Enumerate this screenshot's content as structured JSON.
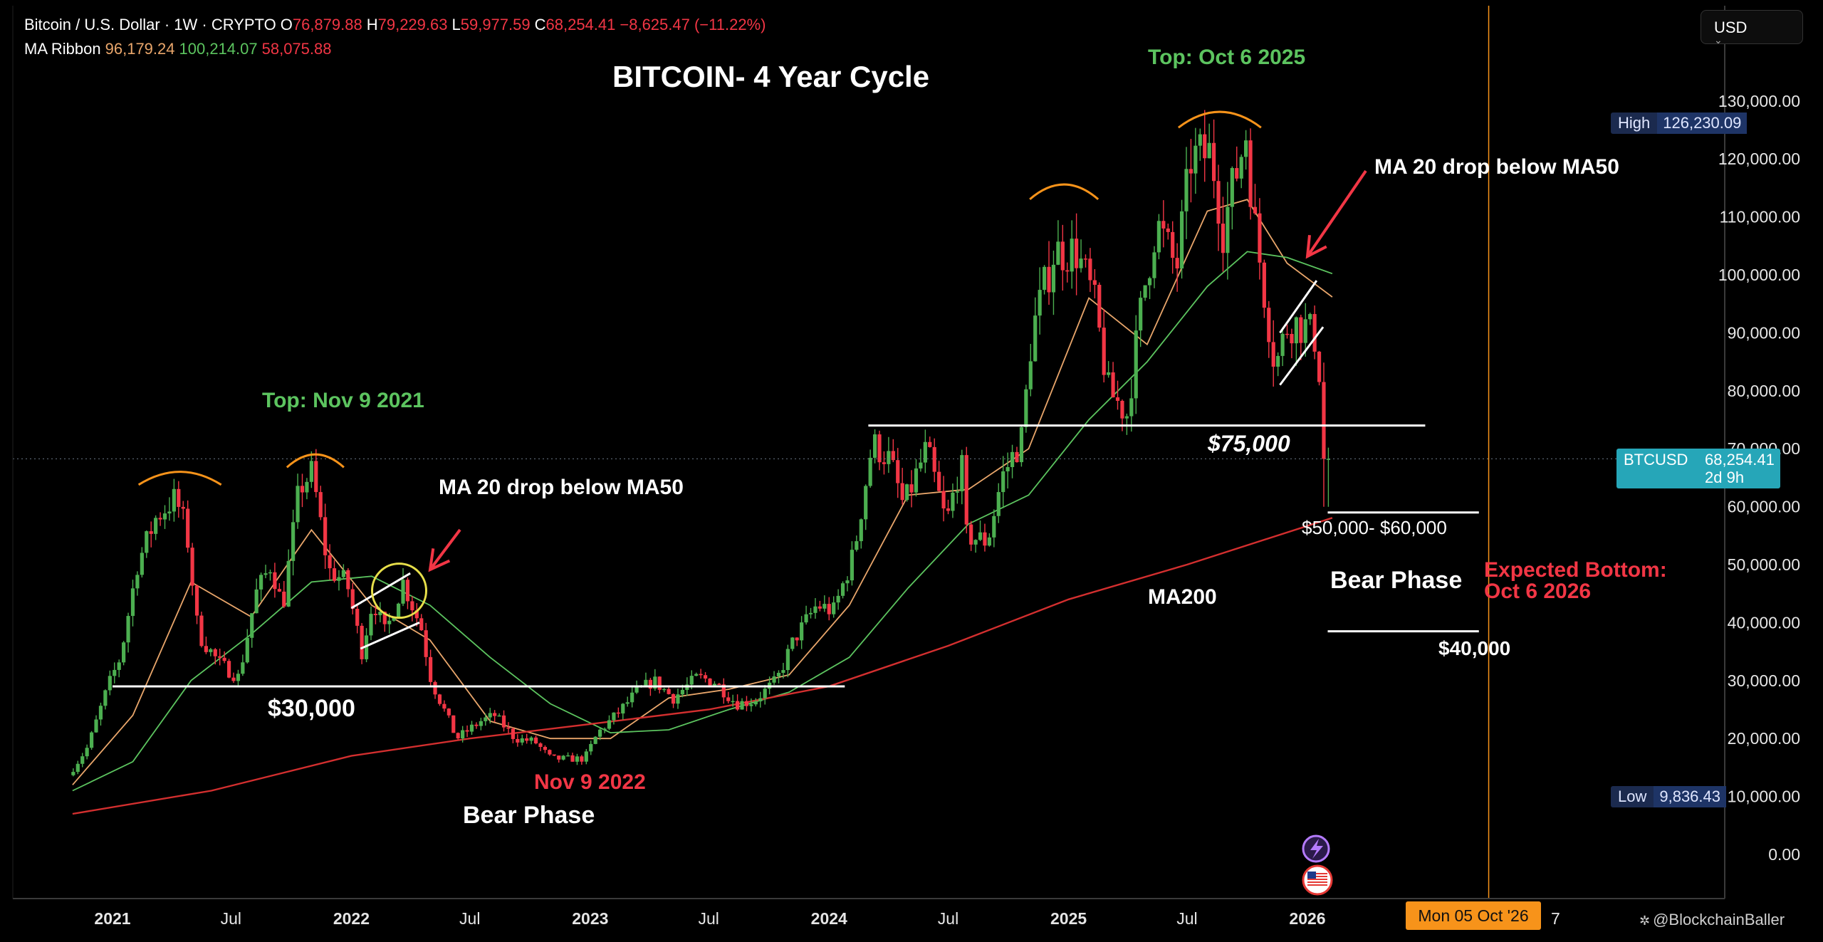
{
  "legend": {
    "title": "Bitcoin / U.S. Dollar · 1W · CRYPTO",
    "open_key": "O",
    "open": "76,879.88",
    "high_key": "H",
    "high": "79,229.63",
    "low_key": "L",
    "low": "59,977.59",
    "close_key": "C",
    "close": "68,254.41",
    "change": "−8,625.47 (−11.22%)",
    "ma_label": "MA Ribbon",
    "ma1": "96,179.24",
    "ma2": "100,214.07",
    "ma3": "58,075.88"
  },
  "currency": "USD",
  "tags": {
    "high_label": "High",
    "high_value": "126,230.09",
    "low_label": "Low",
    "low_value": "9,836.43",
    "symbol": "BTCUSD",
    "last_price": "68,254.41",
    "countdown": "2d 9h",
    "cursor_date": "Mon 05 Oct '26",
    "cursor_hidden_tail": "7"
  },
  "watermark": "@BlockchainBaller",
  "colors": {
    "up": "#4caf50",
    "down": "#f23645",
    "ma20": "#e9a66b",
    "ma50": "#5cc45f",
    "ma200": "#d32f2f",
    "green_text": "#5cc45f",
    "red_text": "#f23645",
    "arc": "#f7931a",
    "cursor": "#f7931a",
    "highlight_circle": "#e7df4a"
  },
  "chart_data": {
    "type": "candlestick",
    "title": "BITCOIN- 4 Year Cycle",
    "timeframe": "1W",
    "ylim": [
      0,
      140000
    ],
    "y_ticks": [
      "0.00",
      "10,000.00",
      "20,000.00",
      "30,000.00",
      "40,000.00",
      "50,000.00",
      "60,000.00",
      "70,000.00",
      "80,000.00",
      "90,000.00",
      "100,000.00",
      "110,000.00",
      "120,000.00",
      "130,000.00"
    ],
    "x_ticks": [
      "2021",
      "Jul",
      "2022",
      "Jul",
      "2023",
      "Jul",
      "2024",
      "Jul",
      "2025",
      "Jul",
      "2026"
    ],
    "price_path": [
      [
        "2020-11-01",
        13500
      ],
      [
        "2020-12-01",
        18500
      ],
      [
        "2021-01-01",
        29000
      ],
      [
        "2021-01-20",
        34000
      ],
      [
        "2021-02-15",
        50000
      ],
      [
        "2021-03-15",
        58000
      ],
      [
        "2021-04-14",
        61500
      ],
      [
        "2021-05-01",
        56000
      ],
      [
        "2021-05-19",
        38000
      ],
      [
        "2021-06-20",
        33000
      ],
      [
        "2021-07-20",
        30500
      ],
      [
        "2021-08-15",
        45000
      ],
      [
        "2021-09-07",
        50000
      ],
      [
        "2021-09-25",
        42500
      ],
      [
        "2021-10-20",
        63000
      ],
      [
        "2021-11-09",
        66000
      ],
      [
        "2021-12-04",
        49000
      ],
      [
        "2022-01-01",
        47000
      ],
      [
        "2022-01-24",
        35000
      ],
      [
        "2022-02-10",
        44000
      ],
      [
        "2022-03-01",
        38000
      ],
      [
        "2022-03-28",
        47000
      ],
      [
        "2022-04-25",
        39000
      ],
      [
        "2022-05-10",
        30000
      ],
      [
        "2022-06-18",
        20000
      ],
      [
        "2022-07-25",
        23000
      ],
      [
        "2022-08-15",
        24000
      ],
      [
        "2022-09-15",
        20000
      ],
      [
        "2022-10-15",
        19500
      ],
      [
        "2022-11-09",
        16500
      ],
      [
        "2022-12-30",
        16500
      ],
      [
        "2023-01-20",
        21000
      ],
      [
        "2023-02-20",
        24500
      ],
      [
        "2023-03-20",
        28000
      ],
      [
        "2023-04-15",
        30000
      ],
      [
        "2023-05-15",
        27000
      ],
      [
        "2023-06-20",
        30500
      ],
      [
        "2023-07-15",
        30000
      ],
      [
        "2023-08-20",
        26000
      ],
      [
        "2023-09-15",
        26500
      ],
      [
        "2023-10-20",
        30000
      ],
      [
        "2023-11-15",
        37000
      ],
      [
        "2023-12-20",
        43000
      ],
      [
        "2024-01-15",
        42000
      ],
      [
        "2024-02-15",
        52000
      ],
      [
        "2024-03-14",
        71000
      ],
      [
        "2024-04-10",
        68000
      ],
      [
        "2024-05-01",
        60000
      ],
      [
        "2024-06-05",
        70000
      ],
      [
        "2024-07-05",
        57000
      ],
      [
        "2024-07-28",
        68000
      ],
      [
        "2024-08-05",
        55000
      ],
      [
        "2024-09-06",
        54000
      ],
      [
        "2024-09-28",
        65000
      ],
      [
        "2024-10-29",
        72000
      ],
      [
        "2024-11-13",
        90000
      ],
      [
        "2024-12-17",
        104000
      ],
      [
        "2025-01-20",
        104000
      ],
      [
        "2025-02-15",
        96000
      ],
      [
        "2025-03-10",
        80000
      ],
      [
        "2025-04-07",
        76000
      ],
      [
        "2025-05-01",
        96000
      ],
      [
        "2025-05-22",
        109000
      ],
      [
        "2025-06-22",
        101000
      ],
      [
        "2025-07-14",
        120000
      ],
      [
        "2025-08-14",
        121000
      ],
      [
        "2025-09-01",
        108000
      ],
      [
        "2025-10-06",
        124500
      ],
      [
        "2025-10-20",
        108000
      ],
      [
        "2025-11-20",
        84000
      ],
      [
        "2025-12-10",
        92000
      ],
      [
        "2026-01-05",
        91000
      ],
      [
        "2026-01-20",
        89000
      ],
      [
        "2026-02-01",
        78000
      ],
      [
        "2026-02-08",
        68254
      ]
    ],
    "series": [
      {
        "name": "MA20",
        "points": [
          [
            "2020-11-01",
            12000
          ],
          [
            "2021-02-01",
            24000
          ],
          [
            "2021-05-01",
            47000
          ],
          [
            "2021-08-01",
            41000
          ],
          [
            "2021-11-01",
            56000
          ],
          [
            "2022-02-01",
            43000
          ],
          [
            "2022-05-01",
            37000
          ],
          [
            "2022-08-01",
            23000
          ],
          [
            "2022-11-01",
            20000
          ],
          [
            "2023-02-01",
            20000
          ],
          [
            "2023-05-01",
            27000
          ],
          [
            "2023-08-01",
            28500
          ],
          [
            "2023-11-01",
            31000
          ],
          [
            "2024-02-01",
            43000
          ],
          [
            "2024-05-01",
            62000
          ],
          [
            "2024-08-01",
            63000
          ],
          [
            "2024-11-01",
            70000
          ],
          [
            "2025-02-01",
            96000
          ],
          [
            "2025-05-01",
            88000
          ],
          [
            "2025-08-01",
            111000
          ],
          [
            "2025-10-01",
            113000
          ],
          [
            "2025-12-01",
            102000
          ],
          [
            "2026-02-08",
            96179
          ]
        ]
      },
      {
        "name": "MA50",
        "points": [
          [
            "2020-11-01",
            11000
          ],
          [
            "2021-02-01",
            16000
          ],
          [
            "2021-05-01",
            30000
          ],
          [
            "2021-08-01",
            38000
          ],
          [
            "2021-11-01",
            47000
          ],
          [
            "2022-02-01",
            48000
          ],
          [
            "2022-05-01",
            43000
          ],
          [
            "2022-08-01",
            34000
          ],
          [
            "2022-11-01",
            26000
          ],
          [
            "2023-02-01",
            21000
          ],
          [
            "2023-05-01",
            21500
          ],
          [
            "2023-08-01",
            25000
          ],
          [
            "2023-11-01",
            28000
          ],
          [
            "2024-02-01",
            34000
          ],
          [
            "2024-05-01",
            46000
          ],
          [
            "2024-08-01",
            57000
          ],
          [
            "2024-11-01",
            62000
          ],
          [
            "2025-02-01",
            75000
          ],
          [
            "2025-05-01",
            85000
          ],
          [
            "2025-08-01",
            98000
          ],
          [
            "2025-10-01",
            104000
          ],
          [
            "2025-12-01",
            103000
          ],
          [
            "2026-02-08",
            100214
          ]
        ]
      },
      {
        "name": "MA200",
        "points": [
          [
            "2020-11-01",
            7000
          ],
          [
            "2021-06-01",
            11000
          ],
          [
            "2022-01-01",
            17000
          ],
          [
            "2022-07-01",
            20000
          ],
          [
            "2023-01-01",
            22500
          ],
          [
            "2023-07-01",
            25000
          ],
          [
            "2024-01-01",
            29000
          ],
          [
            "2024-07-01",
            36000
          ],
          [
            "2025-01-01",
            44000
          ],
          [
            "2025-07-01",
            50000
          ],
          [
            "2026-02-08",
            58076
          ]
        ]
      }
    ],
    "levels": [
      {
        "label": "$30,000",
        "value": 29000,
        "from": "2021-01-01",
        "to": "2024-01-25"
      },
      {
        "label": "$75,000",
        "value": 74000,
        "from": "2024-03-01",
        "to": "2026-06-30"
      },
      {
        "label": "$50,000- $60,000",
        "value": 59000,
        "from": "2026-02-01",
        "to": "2026-09-20"
      },
      {
        "label": "$40,000",
        "value": 38500,
        "from": "2026-02-01",
        "to": "2026-09-20"
      }
    ],
    "annotations": {
      "top_2021": "Top: Nov 9 2021",
      "top_2025": "Top: Oct 6 2025",
      "ma_cross_1": "MA 20 drop below MA50",
      "ma_cross_2": "MA 20 drop below MA50",
      "bottom_2022": "Nov 9 2022",
      "bear_1": "Bear Phase",
      "bear_2": "Bear Phase",
      "ma200": "MA200",
      "expected_1": "Expected Bottom:",
      "expected_2": "Oct 6 2026"
    }
  }
}
